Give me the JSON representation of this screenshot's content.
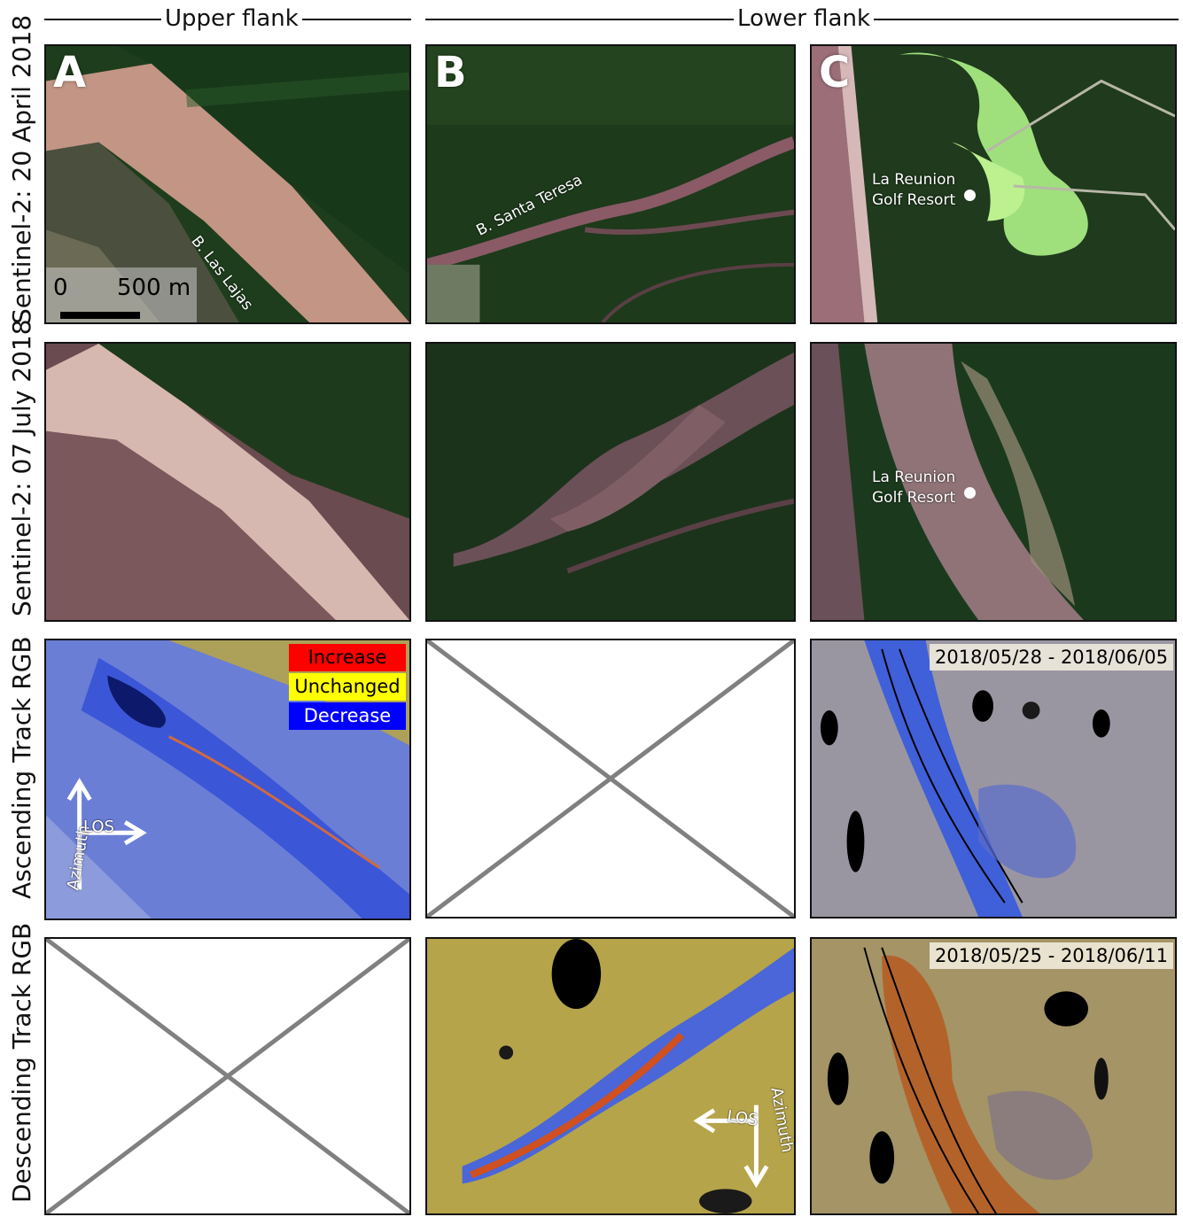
{
  "headers": {
    "upper": "Upper flank",
    "lower": "Lower flank"
  },
  "rows": [
    "Sentinel-2: 20 April 2018",
    "Sentinel-2: 07 July 2018",
    "Ascending Track RGB",
    "Descending Track RGB"
  ],
  "panel_letters": [
    "A",
    "B",
    "C"
  ],
  "labels": {
    "las_lajas": "B. Las Lajas",
    "santa_teresa": "B. Santa Teresa",
    "golf_line1": "La Reunion",
    "golf_line2": "Golf Resort"
  },
  "scale": {
    "zero": "0",
    "dist": "500 m"
  },
  "legend": [
    {
      "label": "Increase",
      "color": "#ff0000"
    },
    {
      "label": "Unchanged",
      "color": "#ffff00"
    },
    {
      "label": "Decrease",
      "color": "#0000ff"
    }
  ],
  "arrows": {
    "azimuth": "Azimuth",
    "los": "LOS"
  },
  "dates": {
    "ascending": "2018/05/28 - 2018/06/05",
    "descending": "2018/05/25 - 2018/06/11"
  },
  "colors": {
    "forest": "#1f3a1c",
    "deposit": "#a37878",
    "sar_blue": "#5d73d6",
    "sar_yellow": "#b5a44a",
    "golf_green": "#9fe07c"
  }
}
